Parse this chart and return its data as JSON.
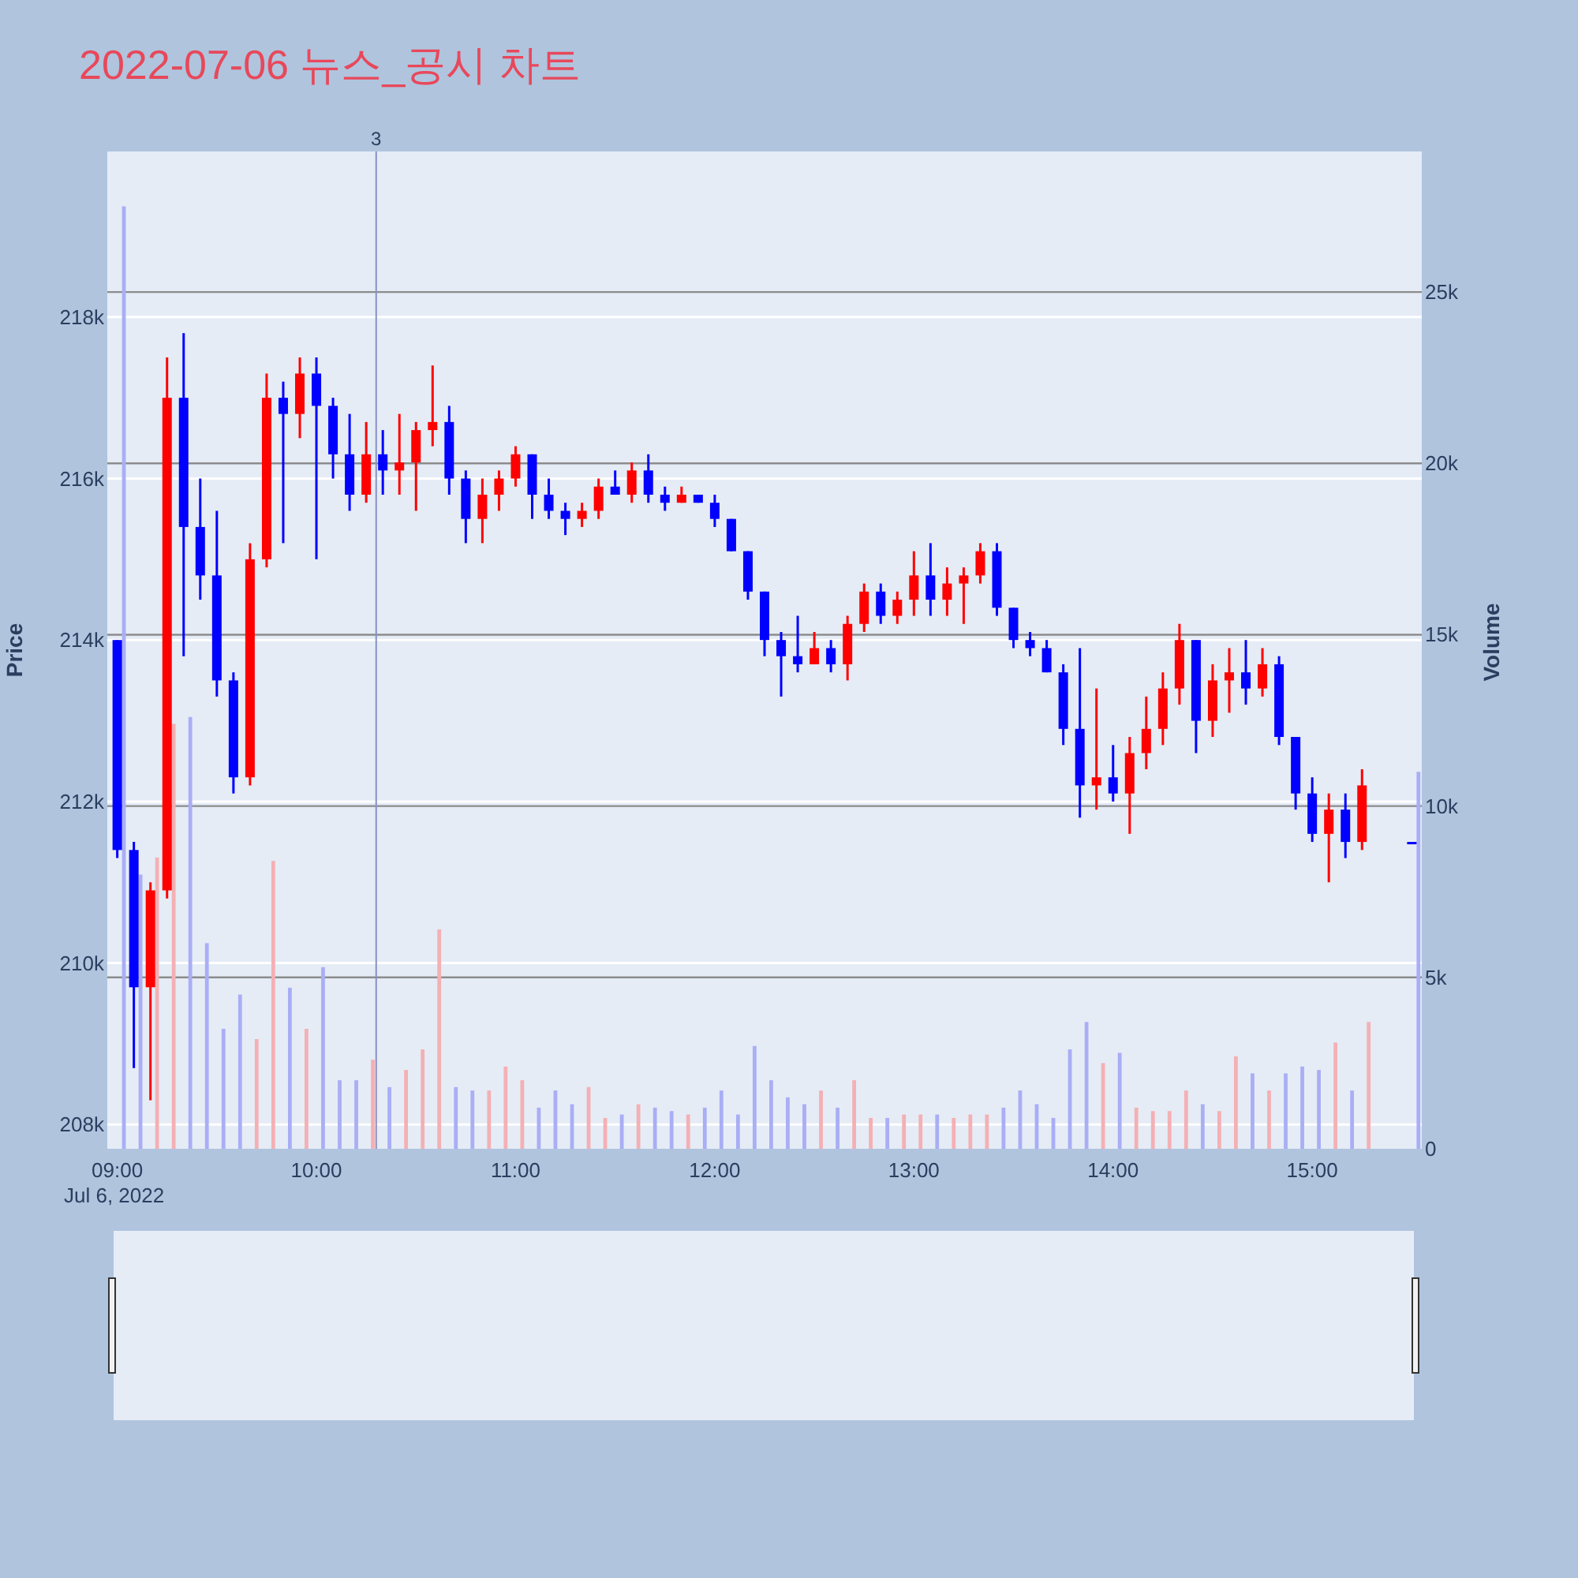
{
  "chart_data": {
    "type": "candlestick",
    "title": "2022-07-06 뉴스_공시 차트",
    "ylabel": "Price",
    "y2label": "Volume",
    "x": [
      "2022-07-06T09:00",
      "2022-07-06T09:05",
      "2022-07-06T09:10",
      "2022-07-06T09:15",
      "2022-07-06T09:20",
      "2022-07-06T09:25",
      "2022-07-06T09:30",
      "2022-07-06T09:35",
      "2022-07-06T09:40",
      "2022-07-06T09:45",
      "2022-07-06T09:50",
      "2022-07-06T09:55",
      "2022-07-06T10:00",
      "2022-07-06T10:05",
      "2022-07-06T10:10",
      "2022-07-06T10:15",
      "2022-07-06T10:20",
      "2022-07-06T10:25",
      "2022-07-06T10:30",
      "2022-07-06T10:35",
      "2022-07-06T10:40",
      "2022-07-06T10:45",
      "2022-07-06T10:50",
      "2022-07-06T10:55",
      "2022-07-06T11:00",
      "2022-07-06T11:05",
      "2022-07-06T11:10",
      "2022-07-06T11:15",
      "2022-07-06T11:20",
      "2022-07-06T11:25",
      "2022-07-06T11:30",
      "2022-07-06T11:35",
      "2022-07-06T11:40",
      "2022-07-06T11:45",
      "2022-07-06T11:50",
      "2022-07-06T11:55",
      "2022-07-06T12:00",
      "2022-07-06T12:05",
      "2022-07-06T12:10",
      "2022-07-06T12:15",
      "2022-07-06T12:20",
      "2022-07-06T12:25",
      "2022-07-06T12:30",
      "2022-07-06T12:35",
      "2022-07-06T12:40",
      "2022-07-06T12:45",
      "2022-07-06T12:50",
      "2022-07-06T12:55",
      "2022-07-06T13:00",
      "2022-07-06T13:05",
      "2022-07-06T13:10",
      "2022-07-06T13:15",
      "2022-07-06T13:20",
      "2022-07-06T13:25",
      "2022-07-06T13:30",
      "2022-07-06T13:35",
      "2022-07-06T13:40",
      "2022-07-06T13:45",
      "2022-07-06T13:50",
      "2022-07-06T13:55",
      "2022-07-06T14:00",
      "2022-07-06T14:05",
      "2022-07-06T14:10",
      "2022-07-06T14:15",
      "2022-07-06T14:20",
      "2022-07-06T14:25",
      "2022-07-06T14:30",
      "2022-07-06T14:35",
      "2022-07-06T14:40",
      "2022-07-06T14:45",
      "2022-07-06T14:50",
      "2022-07-06T14:55",
      "2022-07-06T15:00",
      "2022-07-06T15:05",
      "2022-07-06T15:10",
      "2022-07-06T15:15",
      "2022-07-06T15:30"
    ],
    "series": [
      {
        "ohlc": [
          [
            214000,
            214000,
            211300,
            211400
          ],
          [
            211400,
            211500,
            208700,
            209700
          ],
          [
            209700,
            211000,
            208300,
            210900
          ],
          [
            210900,
            217500,
            210800,
            217000
          ],
          [
            217000,
            217800,
            213800,
            215400
          ],
          [
            215400,
            216000,
            214500,
            214800
          ],
          [
            214800,
            215600,
            213300,
            213500
          ],
          [
            213500,
            213600,
            212100,
            212300
          ],
          [
            212300,
            215200,
            212200,
            215000
          ],
          [
            215000,
            217300,
            214900,
            217000
          ],
          [
            217000,
            217200,
            215200,
            216800
          ],
          [
            216800,
            217500,
            216500,
            217300
          ],
          [
            217300,
            217500,
            215000,
            216900
          ],
          [
            216900,
            217000,
            216000,
            216300
          ],
          [
            216300,
            216800,
            215600,
            215800
          ],
          [
            215800,
            216700,
            215700,
            216300
          ],
          [
            216300,
            216600,
            215800,
            216100
          ],
          [
            216100,
            216800,
            215800,
            216200
          ],
          [
            216200,
            216700,
            215600,
            216600
          ],
          [
            216600,
            217400,
            216400,
            216700
          ],
          [
            216700,
            216900,
            215800,
            216000
          ],
          [
            216000,
            216100,
            215200,
            215500
          ],
          [
            215500,
            216000,
            215200,
            215800
          ],
          [
            215800,
            216100,
            215600,
            216000
          ],
          [
            216000,
            216400,
            215900,
            216300
          ],
          [
            216300,
            216300,
            215500,
            215800
          ],
          [
            215800,
            216000,
            215500,
            215600
          ],
          [
            215600,
            215700,
            215300,
            215500
          ],
          [
            215500,
            215700,
            215400,
            215600
          ],
          [
            215600,
            216000,
            215500,
            215900
          ],
          [
            215900,
            216100,
            215800,
            215800
          ],
          [
            215800,
            216200,
            215700,
            216100
          ],
          [
            216100,
            216300,
            215700,
            215800
          ],
          [
            215800,
            215900,
            215600,
            215700
          ],
          [
            215700,
            215900,
            215700,
            215800
          ],
          [
            215800,
            215800,
            215700,
            215700
          ],
          [
            215700,
            215800,
            215400,
            215500
          ],
          [
            215500,
            215500,
            215100,
            215100
          ],
          [
            215100,
            215100,
            214500,
            214600
          ],
          [
            214600,
            214600,
            213800,
            214000
          ],
          [
            214000,
            214100,
            213300,
            213800
          ],
          [
            213800,
            214300,
            213600,
            213700
          ],
          [
            213700,
            214100,
            213700,
            213900
          ],
          [
            213900,
            214000,
            213600,
            213700
          ],
          [
            213700,
            214300,
            213500,
            214200
          ],
          [
            214200,
            214700,
            214100,
            214600
          ],
          [
            214600,
            214700,
            214200,
            214300
          ],
          [
            214300,
            214600,
            214200,
            214500
          ],
          [
            214500,
            215100,
            214300,
            214800
          ],
          [
            214800,
            215200,
            214300,
            214500
          ],
          [
            214500,
            214900,
            214300,
            214700
          ],
          [
            214700,
            214900,
            214200,
            214800
          ],
          [
            214800,
            215200,
            214700,
            215100
          ],
          [
            215100,
            215200,
            214300,
            214400
          ],
          [
            214400,
            214400,
            213900,
            214000
          ],
          [
            214000,
            214100,
            213800,
            213900
          ],
          [
            213900,
            214000,
            213600,
            213600
          ],
          [
            213600,
            213700,
            212700,
            212900
          ],
          [
            212900,
            213900,
            211800,
            212200
          ],
          [
            212200,
            213400,
            211900,
            212300
          ],
          [
            212300,
            212700,
            212000,
            212100
          ],
          [
            212100,
            212800,
            211600,
            212600
          ],
          [
            212600,
            213300,
            212400,
            212900
          ],
          [
            212900,
            213600,
            212700,
            213400
          ],
          [
            213400,
            214200,
            213200,
            214000
          ],
          [
            214000,
            214000,
            212600,
            213000
          ],
          [
            213000,
            213700,
            212800,
            213500
          ],
          [
            213500,
            213900,
            213100,
            213600
          ],
          [
            213600,
            214000,
            213200,
            213400
          ],
          [
            213400,
            213900,
            213300,
            213700
          ],
          [
            213700,
            213800,
            212700,
            212800
          ],
          [
            212800,
            212800,
            211900,
            212100
          ],
          [
            212100,
            212300,
            211500,
            211600
          ],
          [
            211600,
            212100,
            211000,
            211900
          ],
          [
            211900,
            212100,
            211300,
            211500
          ],
          [
            211500,
            212400,
            211400,
            212200
          ],
          [
            211500,
            211500,
            211500,
            211500
          ]
        ],
        "colors": [
          "#0000ff",
          "#0000ff",
          "#ff0000",
          "#ff0000",
          "#0000ff",
          "#0000ff",
          "#0000ff",
          "#0000ff",
          "#ff0000",
          "#ff0000",
          "#0000ff",
          "#ff0000",
          "#0000ff",
          "#0000ff",
          "#0000ff",
          "#ff0000",
          "#0000ff",
          "#ff0000",
          "#ff0000",
          "#ff0000",
          "#0000ff",
          "#0000ff",
          "#ff0000",
          "#ff0000",
          "#ff0000",
          "#0000ff",
          "#0000ff",
          "#0000ff",
          "#ff0000",
          "#ff0000",
          "#0000ff",
          "#ff0000",
          "#0000ff",
          "#0000ff",
          "#ff0000",
          "#0000ff",
          "#0000ff",
          "#0000ff",
          "#0000ff",
          "#0000ff",
          "#0000ff",
          "#0000ff",
          "#ff0000",
          "#0000ff",
          "#ff0000",
          "#ff0000",
          "#0000ff",
          "#ff0000",
          "#ff0000",
          "#0000ff",
          "#ff0000",
          "#ff0000",
          "#ff0000",
          "#0000ff",
          "#0000ff",
          "#0000ff",
          "#0000ff",
          "#0000ff",
          "#0000ff",
          "#ff0000",
          "#0000ff",
          "#ff0000",
          "#ff0000",
          "#ff0000",
          "#ff0000",
          "#0000ff",
          "#ff0000",
          "#ff0000",
          "#0000ff",
          "#ff0000",
          "#0000ff",
          "#0000ff",
          "#0000ff",
          "#ff0000",
          "#0000ff",
          "#ff0000",
          "#0000ff"
        ]
      },
      {
        "type": "bar",
        "axis": "y2",
        "x": [
          "2022-07-06T09:02",
          "2022-07-06T09:07",
          "2022-07-06T09:12",
          "2022-07-06T09:17",
          "2022-07-06T09:22",
          "2022-07-06T09:27",
          "2022-07-06T09:32",
          "2022-07-06T09:37",
          "2022-07-06T09:42",
          "2022-07-06T09:47",
          "2022-07-06T09:52",
          "2022-07-06T09:57",
          "2022-07-06T10:02",
          "2022-07-06T10:07",
          "2022-07-06T10:12",
          "2022-07-06T10:17",
          "2022-07-06T10:22",
          "2022-07-06T10:27",
          "2022-07-06T10:32",
          "2022-07-06T10:37",
          "2022-07-06T10:42",
          "2022-07-06T10:47",
          "2022-07-06T10:52",
          "2022-07-06T10:57",
          "2022-07-06T11:02",
          "2022-07-06T11:07",
          "2022-07-06T11:12",
          "2022-07-06T11:17",
          "2022-07-06T11:22",
          "2022-07-06T11:27",
          "2022-07-06T11:32",
          "2022-07-06T11:37",
          "2022-07-06T11:42",
          "2022-07-06T11:47",
          "2022-07-06T11:52",
          "2022-07-06T11:57",
          "2022-07-06T12:02",
          "2022-07-06T12:07",
          "2022-07-06T12:12",
          "2022-07-06T12:17",
          "2022-07-06T12:22",
          "2022-07-06T12:27",
          "2022-07-06T12:32",
          "2022-07-06T12:37",
          "2022-07-06T12:42",
          "2022-07-06T12:47",
          "2022-07-06T12:52",
          "2022-07-06T12:57",
          "2022-07-06T13:02",
          "2022-07-06T13:07",
          "2022-07-06T13:12",
          "2022-07-06T13:17",
          "2022-07-06T13:22",
          "2022-07-06T13:27",
          "2022-07-06T13:32",
          "2022-07-06T13:37",
          "2022-07-06T13:42",
          "2022-07-06T13:47",
          "2022-07-06T13:52",
          "2022-07-06T13:57",
          "2022-07-06T14:02",
          "2022-07-06T14:07",
          "2022-07-06T14:12",
          "2022-07-06T14:17",
          "2022-07-06T14:22",
          "2022-07-06T14:27",
          "2022-07-06T14:32",
          "2022-07-06T14:37",
          "2022-07-06T14:42",
          "2022-07-06T14:47",
          "2022-07-06T14:52",
          "2022-07-06T14:57",
          "2022-07-06T15:02",
          "2022-07-06T15:07",
          "2022-07-06T15:12",
          "2022-07-06T15:17",
          "2022-07-06T15:32"
        ],
        "values": [
          27500,
          8000,
          8500,
          12400,
          12600,
          6000,
          3500,
          4500,
          3200,
          8400,
          4700,
          3500,
          5300,
          2000,
          2000,
          2600,
          1800,
          2300,
          2900,
          6400,
          1800,
          1700,
          1700,
          2400,
          2000,
          1200,
          1700,
          1300,
          1800,
          900,
          1000,
          1300,
          1200,
          1100,
          1000,
          1200,
          1700,
          1000,
          3000,
          2000,
          1500,
          1300,
          1700,
          1200,
          2000,
          900,
          900,
          1000,
          1000,
          1000,
          900,
          1000,
          1000,
          1200,
          1700,
          1300,
          900,
          2900,
          3700,
          2500,
          2800,
          1200,
          1100,
          1100,
          1700,
          1300,
          1100,
          2700,
          2200,
          1700,
          2200,
          2400,
          2300,
          3100,
          1700,
          3700,
          11000
        ],
        "colors": [
          "#a9aef5",
          "#a9aef5",
          "#f4b0b4",
          "#f4b0b4",
          "#a9aef5",
          "#a9aef5",
          "#a9aef5",
          "#a9aef5",
          "#f4b0b4",
          "#f4b0b4",
          "#a9aef5",
          "#f4b0b4",
          "#a9aef5",
          "#a9aef5",
          "#a9aef5",
          "#f4b0b4",
          "#a9aef5",
          "#f4b0b4",
          "#f4b0b4",
          "#f4b0b4",
          "#a9aef5",
          "#a9aef5",
          "#f4b0b4",
          "#f4b0b4",
          "#f4b0b4",
          "#a9aef5",
          "#a9aef5",
          "#a9aef5",
          "#f4b0b4",
          "#f4b0b4",
          "#a9aef5",
          "#f4b0b4",
          "#a9aef5",
          "#a9aef5",
          "#f4b0b4",
          "#a9aef5",
          "#a9aef5",
          "#a9aef5",
          "#a9aef5",
          "#a9aef5",
          "#a9aef5",
          "#a9aef5",
          "#f4b0b4",
          "#a9aef5",
          "#f4b0b4",
          "#f4b0b4",
          "#a9aef5",
          "#f4b0b4",
          "#f4b0b4",
          "#a9aef5",
          "#f4b0b4",
          "#f4b0b4",
          "#f4b0b4",
          "#a9aef5",
          "#a9aef5",
          "#a9aef5",
          "#a9aef5",
          "#a9aef5",
          "#a9aef5",
          "#f4b0b4",
          "#a9aef5",
          "#f4b0b4",
          "#f4b0b4",
          "#f4b0b4",
          "#f4b0b4",
          "#a9aef5",
          "#f4b0b4",
          "#f4b0b4",
          "#a9aef5",
          "#f4b0b4",
          "#a9aef5",
          "#a9aef5",
          "#a9aef5",
          "#f4b0b4",
          "#a9aef5",
          "#f4b0b4",
          "#a9aef5"
        ]
      }
    ],
    "xlim": [
      "2022-07-06T08:57",
      "2022-07-06T15:33"
    ],
    "xticks": [
      {
        "value": "2022-07-06T09:00",
        "label": "09:00\nJul 6, 2022"
      },
      {
        "value": "2022-07-06T10:00",
        "label": "10:00"
      },
      {
        "value": "2022-07-06T11:00",
        "label": "11:00"
      },
      {
        "value": "2022-07-06T12:00",
        "label": "12:00"
      },
      {
        "value": "2022-07-06T13:00",
        "label": "13:00"
      },
      {
        "value": "2022-07-06T14:00",
        "label": "14:00"
      },
      {
        "value": "2022-07-06T15:00",
        "label": "15:00"
      }
    ],
    "ylim": [
      207700,
      220050
    ],
    "yticks": [
      {
        "value": 208000,
        "label": "208k"
      },
      {
        "value": 210000,
        "label": "210k"
      },
      {
        "value": 212000,
        "label": "212k"
      },
      {
        "value": 214000,
        "label": "214k"
      },
      {
        "value": 216000,
        "label": "216k"
      },
      {
        "value": 218000,
        "label": "218k"
      }
    ],
    "y2lim": [
      0,
      29100
    ],
    "y2ticks": [
      0,
      {
        "value": 5000,
        "label": "5k"
      },
      {
        "value": 10000,
        "label": "10k"
      },
      {
        "value": 15000,
        "label": "15k"
      },
      {
        "value": 20000,
        "label": "20k"
      },
      {
        "value": 25000,
        "label": "25k"
      }
    ],
    "ref_lines": [
      {
        "axis": "x",
        "value": "2022-07-06T10:18",
        "label": "3",
        "color": "#8592c4"
      }
    ],
    "grid": "y"
  }
}
